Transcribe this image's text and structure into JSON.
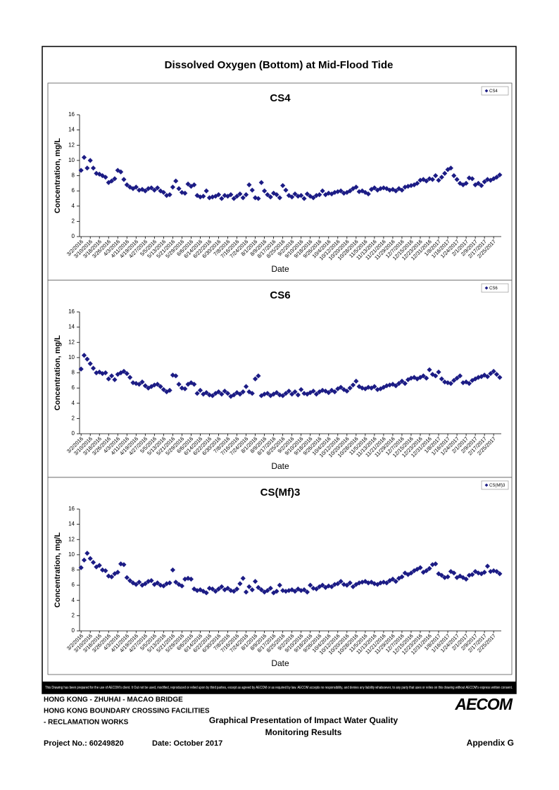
{
  "page_title": "Dissolved Oxygen (Bottom) at Mid-Flood Tide",
  "chart_data": [
    {
      "type": "scatter",
      "title": "CS4",
      "x_label": "Date",
      "y_label": "Concentration, mg/L",
      "legend": "upper right",
      "categories": [
        "3/2/2016",
        null,
        null,
        "3/10/2016",
        null,
        null,
        "3/18/2016",
        null,
        null,
        "3/26/2016",
        null,
        null,
        "4/3/2016",
        null,
        null,
        "4/11/2016",
        null,
        null,
        "4/19/2016",
        null,
        null,
        "4/27/2016",
        null,
        null,
        "5/5/2016",
        null,
        null,
        "5/13/2016",
        null,
        null,
        "5/21/2016",
        null,
        null,
        "5/29/2016",
        null,
        null,
        "6/6/2016",
        null,
        null,
        "6/14/2016",
        null,
        null,
        "6/22/2016",
        null,
        null,
        "6/30/2016",
        null,
        null,
        "7/8/2016",
        null,
        null,
        "7/16/2016",
        null,
        null,
        "7/24/2016",
        null,
        null,
        "8/1/2016",
        null,
        null,
        "8/9/2016",
        null,
        null,
        "8/17/2016",
        null,
        null,
        "8/25/2016",
        null,
        null,
        "9/2/2016",
        null,
        null,
        "9/10/2016",
        null,
        null,
        "9/18/2016",
        null,
        null,
        "9/26/2016",
        null,
        null,
        "10/4/2016",
        null,
        null,
        "10/12/2016",
        null,
        null,
        "10/20/2016",
        null,
        null,
        "10/28/2016",
        null,
        null,
        "11/5/2016",
        null,
        null,
        "11/13/2016",
        null,
        null,
        "11/21/2016",
        null,
        null,
        "11/29/2016",
        null,
        null,
        "12/7/2016",
        null,
        null,
        "12/15/2016",
        null,
        null,
        "12/23/2016",
        null,
        null,
        "12/31/2016",
        null,
        null,
        "1/8/2017",
        null,
        null,
        "1/16/2017",
        null,
        null,
        "1/24/2017",
        null,
        null,
        "2/1/2017",
        null,
        null,
        "2/9/2017",
        null,
        null,
        "2/17/2017",
        null,
        null,
        "2/25/2017",
        null,
        null
      ],
      "series": [
        {
          "name": "CS4",
          "color": "#1c1c85",
          "values": [
            8.7,
            10.4,
            9.0,
            10.0,
            9.0,
            8.3,
            8.2,
            8.0,
            7.8,
            7.1,
            7.3,
            7.6,
            8.7,
            8.5,
            7.5,
            6.8,
            6.5,
            6.3,
            6.5,
            6.1,
            6.2,
            6.0,
            6.3,
            6.4,
            6.1,
            6.4,
            6.0,
            5.8,
            5.4,
            5.5,
            6.5,
            7.3,
            6.3,
            5.8,
            5.7,
            6.9,
            6.6,
            6.8,
            5.4,
            5.2,
            5.3,
            6.0,
            5.1,
            5.2,
            5.3,
            5.5,
            5.0,
            5.4,
            5.3,
            5.5,
            5.0,
            5.3,
            5.6,
            5.1,
            5.5,
            6.8,
            6.1,
            5.1,
            5.0,
            7.1,
            6.0,
            5.5,
            5.2,
            5.7,
            5.5,
            5.1,
            6.7,
            6.1,
            5.4,
            5.2,
            5.6,
            5.3,
            5.4,
            5.0,
            5.6,
            5.3,
            5.1,
            5.4,
            5.5,
            6.0,
            5.5,
            5.7,
            5.6,
            5.8,
            5.9,
            6.0,
            5.7,
            5.8,
            6.0,
            6.3,
            6.5,
            5.9,
            6.0,
            5.8,
            5.6,
            6.2,
            6.4,
            6.1,
            6.3,
            6.4,
            6.3,
            6.1,
            6.2,
            6.0,
            6.3,
            6.1,
            6.5,
            6.6,
            6.7,
            6.8,
            7.0,
            7.4,
            7.5,
            7.3,
            7.6,
            7.5,
            8.0,
            7.4,
            7.8,
            8.3,
            8.8,
            9.0,
            8.0,
            7.5,
            7.0,
            6.8,
            7.0,
            7.7,
            7.6,
            6.8,
            7.0,
            6.7,
            7.2,
            7.5,
            7.4,
            7.6,
            7.8,
            8.1
          ]
        }
      ],
      "ylim": [
        0,
        16
      ],
      "yticks": [
        0,
        2,
        4,
        6,
        8,
        10,
        12,
        14,
        16
      ]
    },
    {
      "type": "scatter",
      "title": "CS6",
      "x_label": "Date",
      "y_label": "Concentration, mg/L",
      "legend": "upper right",
      "categories": [
        "3/2/2016",
        null,
        null,
        "3/10/2016",
        null,
        null,
        "3/18/2016",
        null,
        null,
        "3/26/2016",
        null,
        null,
        "4/3/2016",
        null,
        null,
        "4/11/2016",
        null,
        null,
        "4/19/2016",
        null,
        null,
        "4/27/2016",
        null,
        null,
        "5/5/2016",
        null,
        null,
        "5/13/2016",
        null,
        null,
        "5/21/2016",
        null,
        null,
        "5/29/2016",
        null,
        null,
        "6/6/2016",
        null,
        null,
        "6/14/2016",
        null,
        null,
        "6/22/2016",
        null,
        null,
        "6/30/2016",
        null,
        null,
        "7/8/2016",
        null,
        null,
        "7/16/2016",
        null,
        null,
        "7/24/2016",
        null,
        null,
        "8/1/2016",
        null,
        null,
        "8/9/2016",
        null,
        null,
        "8/17/2016",
        null,
        null,
        "8/25/2016",
        null,
        null,
        "9/2/2016",
        null,
        null,
        "9/10/2016",
        null,
        null,
        "9/18/2016",
        null,
        null,
        "9/26/2016",
        null,
        null,
        "10/4/2016",
        null,
        null,
        "10/12/2016",
        null,
        null,
        "10/20/2016",
        null,
        null,
        "10/28/2016",
        null,
        null,
        "11/5/2016",
        null,
        null,
        "11/13/2016",
        null,
        null,
        "11/21/2016",
        null,
        null,
        "11/29/2016",
        null,
        null,
        "12/7/2016",
        null,
        null,
        "12/15/2016",
        null,
        null,
        "12/23/2016",
        null,
        null,
        "12/31/2016",
        null,
        null,
        "1/8/2017",
        null,
        null,
        "1/16/2017",
        null,
        null,
        "1/24/2017",
        null,
        null,
        "2/1/2017",
        null,
        null,
        "2/9/2017",
        null,
        null,
        "2/17/2017",
        null,
        null,
        "2/25/2017",
        null,
        null
      ],
      "series": [
        {
          "name": "CS6",
          "color": "#1c1c85",
          "values": [
            8.5,
            10.3,
            9.8,
            9.2,
            8.6,
            8.0,
            8.1,
            7.9,
            8.0,
            7.2,
            7.6,
            7.1,
            7.8,
            8.0,
            8.2,
            7.9,
            7.4,
            6.7,
            6.6,
            6.5,
            6.8,
            6.3,
            6.0,
            6.2,
            6.4,
            6.5,
            6.2,
            5.8,
            5.5,
            5.7,
            7.7,
            7.6,
            6.5,
            6.0,
            5.9,
            6.5,
            6.7,
            6.5,
            5.3,
            5.7,
            5.2,
            5.4,
            5.1,
            5.0,
            5.3,
            5.5,
            5.2,
            5.6,
            5.3,
            4.9,
            5.1,
            5.4,
            5.2,
            5.5,
            6.2,
            5.5,
            5.3,
            7.2,
            7.6,
            5.0,
            5.2,
            5.3,
            5.0,
            5.2,
            5.4,
            5.1,
            5.0,
            5.3,
            5.6,
            5.2,
            5.5,
            5.1,
            5.8,
            5.3,
            5.2,
            5.4,
            5.6,
            5.2,
            5.5,
            5.7,
            5.6,
            5.4,
            5.7,
            5.5,
            5.9,
            6.1,
            5.8,
            5.6,
            6.0,
            6.4,
            6.9,
            6.2,
            6.0,
            5.9,
            6.1,
            6.0,
            6.2,
            5.8,
            5.9,
            6.1,
            6.3,
            6.4,
            6.5,
            6.3,
            6.6,
            6.9,
            6.6,
            7.1,
            7.3,
            7.4,
            7.2,
            7.4,
            7.6,
            7.3,
            8.4,
            7.8,
            7.6,
            8.1,
            7.2,
            6.8,
            6.7,
            6.6,
            7.0,
            7.3,
            7.6,
            6.7,
            6.8,
            6.6,
            7.0,
            7.2,
            7.4,
            7.5,
            7.7,
            7.5,
            7.9,
            8.2,
            7.8,
            7.4
          ]
        }
      ],
      "ylim": [
        0,
        16
      ],
      "yticks": [
        0,
        2,
        4,
        6,
        8,
        10,
        12,
        14,
        16
      ]
    },
    {
      "type": "scatter",
      "title": "CS(Mf)3",
      "x_label": "Date",
      "y_label": "Concentration, mg/L",
      "legend": "upper right",
      "categories": [
        "3/2/2016",
        null,
        null,
        "3/10/2016",
        null,
        null,
        "3/18/2016",
        null,
        null,
        "3/26/2016",
        null,
        null,
        "4/3/2016",
        null,
        null,
        "4/11/2016",
        null,
        null,
        "4/19/2016",
        null,
        null,
        "4/27/2016",
        null,
        null,
        "5/5/2016",
        null,
        null,
        "5/13/2016",
        null,
        null,
        "5/21/2016",
        null,
        null,
        "5/29/2016",
        null,
        null,
        "6/6/2016",
        null,
        null,
        "6/14/2016",
        null,
        null,
        "6/22/2016",
        null,
        null,
        "6/30/2016",
        null,
        null,
        "7/8/2016",
        null,
        null,
        "7/16/2016",
        null,
        null,
        "7/24/2016",
        null,
        null,
        "8/1/2016",
        null,
        null,
        "8/9/2016",
        null,
        null,
        "8/17/2016",
        null,
        null,
        "8/25/2016",
        null,
        null,
        "9/2/2016",
        null,
        null,
        "9/10/2016",
        null,
        null,
        "9/18/2016",
        null,
        null,
        "9/26/2016",
        null,
        null,
        "10/4/2016",
        null,
        null,
        "10/12/2016",
        null,
        null,
        "10/20/2016",
        null,
        null,
        "10/28/2016",
        null,
        null,
        "11/5/2016",
        null,
        null,
        "11/13/2016",
        null,
        null,
        "11/21/2016",
        null,
        null,
        "11/29/2016",
        null,
        null,
        "12/7/2016",
        null,
        null,
        "12/15/2016",
        null,
        null,
        "12/23/2016",
        null,
        null,
        "12/31/2016",
        null,
        null,
        "1/8/2017",
        null,
        null,
        "1/16/2017",
        null,
        null,
        "1/24/2017",
        null,
        null,
        "2/1/2017",
        null,
        null,
        "2/9/2017",
        null,
        null,
        "2/17/2017",
        null,
        null,
        "2/25/2017",
        null,
        null
      ],
      "series": [
        {
          "name": "CS(Mf)3",
          "color": "#1c1c85",
          "values": [
            8.3,
            9.3,
            10.2,
            9.5,
            9.0,
            8.4,
            8.6,
            8.0,
            7.9,
            7.2,
            7.1,
            7.5,
            7.7,
            8.8,
            8.7,
            7.0,
            6.6,
            6.3,
            6.1,
            6.4,
            6.0,
            6.2,
            6.5,
            6.6,
            6.1,
            6.3,
            6.0,
            5.9,
            6.2,
            6.3,
            8.0,
            6.4,
            6.1,
            5.9,
            6.8,
            6.9,
            6.8,
            5.5,
            5.3,
            5.4,
            5.2,
            5.0,
            5.6,
            5.5,
            5.2,
            5.5,
            5.8,
            5.4,
            5.6,
            5.3,
            5.2,
            5.5,
            6.2,
            6.9,
            5.1,
            5.8,
            5.4,
            6.5,
            5.7,
            5.4,
            5.1,
            5.3,
            5.6,
            5.0,
            5.2,
            6.0,
            5.3,
            5.2,
            5.3,
            5.4,
            5.2,
            5.5,
            5.3,
            5.4,
            5.1,
            6.0,
            5.6,
            5.5,
            5.8,
            6.0,
            5.7,
            5.9,
            5.8,
            6.1,
            6.2,
            6.5,
            6.1,
            6.0,
            6.3,
            5.8,
            6.1,
            6.3,
            6.4,
            6.5,
            6.3,
            6.4,
            6.2,
            6.1,
            6.3,
            6.4,
            6.3,
            6.6,
            6.8,
            6.5,
            6.9,
            7.1,
            7.6,
            7.4,
            7.6,
            7.9,
            8.1,
            8.3,
            7.7,
            7.9,
            8.2,
            8.7,
            8.8,
            7.5,
            7.3,
            7.0,
            7.1,
            7.8,
            7.6,
            7.0,
            7.2,
            7.0,
            6.8,
            7.3,
            7.4,
            7.8,
            7.6,
            7.5,
            7.7,
            8.5,
            7.8,
            7.9,
            7.8,
            7.5
          ]
        }
      ],
      "ylim": [
        0,
        16
      ],
      "yticks": [
        0,
        2,
        4,
        6,
        8,
        10,
        12,
        14,
        16
      ]
    }
  ],
  "disclaimer": "This Drawing has been prepared for the use of AECOM's client. It Out not be used, modified, reproduced or relied upon by third parties, except as agreed by AECOM or as required by law. AECOM accepts no responsibility, and denies any liability whatsoever, to any party that uses or relies on this drawing without AECOM's express written consent.",
  "footer": {
    "project_line1": "HONG KONG - ZHUHAI - MACAO BRIDGE",
    "project_line2": "HONG KONG BOUNDARY CROSSING FACILITIES",
    "project_line3": "- RECLAMATION WORKS",
    "heading_line1": "Graphical Presentation of Impact Water Quality",
    "heading_line2": "Monitoring Results",
    "project_no": "Project No.: 60249820",
    "date": "Date: October 2017",
    "appendix": "Appendix G",
    "logo": "AECOM"
  }
}
